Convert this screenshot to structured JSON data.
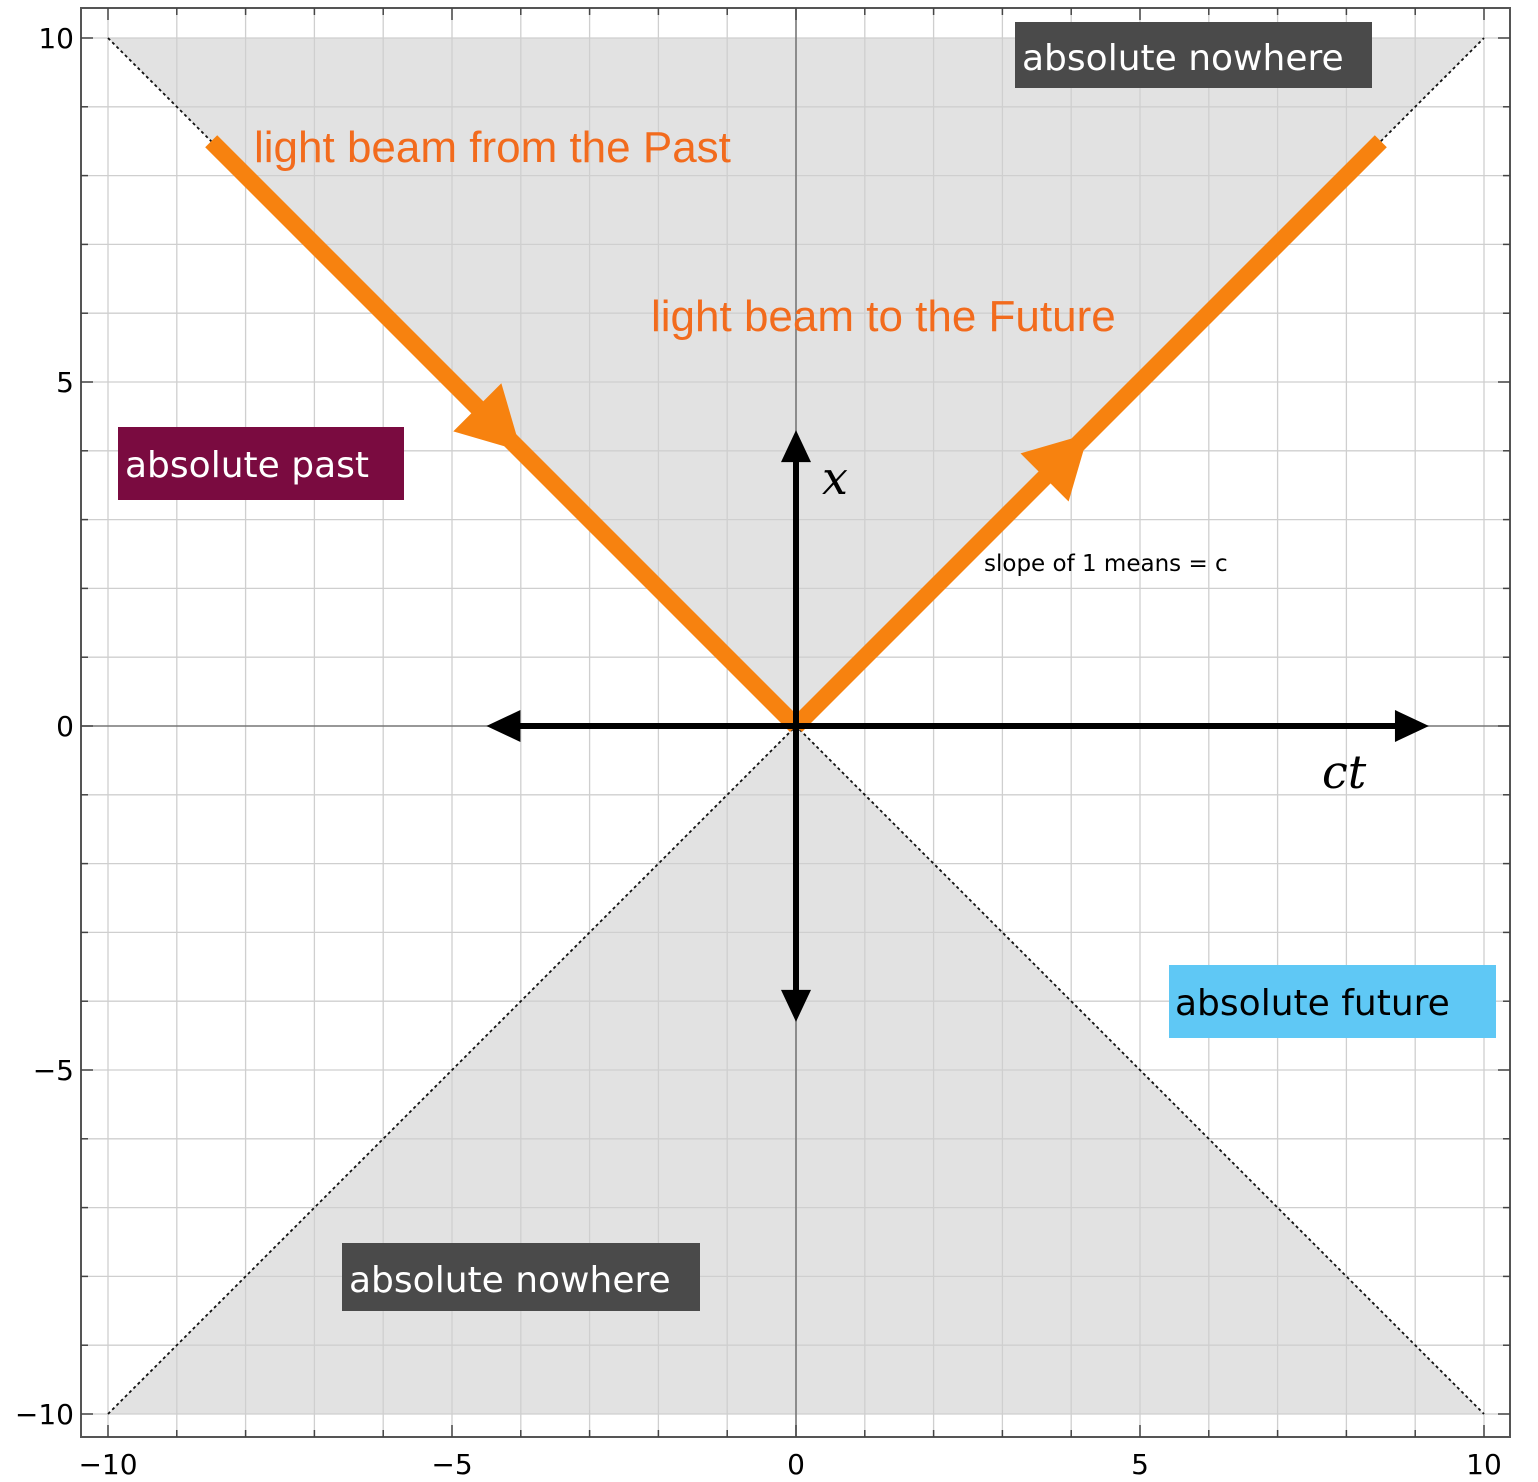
{
  "chart_data": {
    "type": "line",
    "xlim": [
      -10,
      10
    ],
    "ylim": [
      -10,
      10
    ],
    "grid": true,
    "x_ticks": [
      -10,
      -5,
      0,
      5,
      10
    ],
    "y_ticks": [
      -10,
      -5,
      0,
      5,
      10
    ],
    "x_tick_labels": [
      "−10",
      "−5",
      "0",
      "5",
      "10"
    ],
    "y_tick_labels": [
      "−10",
      "−5",
      "0",
      "5",
      "10"
    ],
    "light_cone_lines": [
      {
        "x": [
          -10,
          10
        ],
        "y": [
          10,
          -10
        ]
      },
      {
        "x": [
          -10,
          10
        ],
        "y": [
          -10,
          10
        ]
      }
    ],
    "series": [
      {
        "label": "light beam from the Past",
        "x": [
          -8.5,
          0
        ],
        "y": [
          8.5,
          0
        ],
        "direction": "toward origin",
        "color": "#f7820f"
      },
      {
        "label": "light beam to the Future",
        "x": [
          0,
          8.5
        ],
        "y": [
          0,
          8.5
        ],
        "direction": "away from origin",
        "color": "#f7820f"
      }
    ],
    "axis_arrows": {
      "horizontal": {
        "label": "ct",
        "from": -4.5,
        "to": 9.2
      },
      "vertical": {
        "label": "x",
        "from": -4.3,
        "to": 4.3
      }
    },
    "annotation": "slope of 1 means = c",
    "regions": [
      {
        "label": "absolute nowhere",
        "bg": "#4a4a4a",
        "text_color": "#ffffff"
      },
      {
        "label": "absolute past",
        "bg": "#7a0b40",
        "text_color": "#ffffff"
      },
      {
        "label": "absolute future",
        "bg": "#5fc8f5",
        "text_color": "#000000"
      },
      {
        "label": "absolute nowhere",
        "bg": "#4a4a4a",
        "text_color": "#ffffff"
      }
    ],
    "colors": {
      "shade": "#e2e2e2",
      "grid": "#cfcfcf",
      "beam": "#f7820f",
      "beam_text": "#f26b1d"
    }
  }
}
